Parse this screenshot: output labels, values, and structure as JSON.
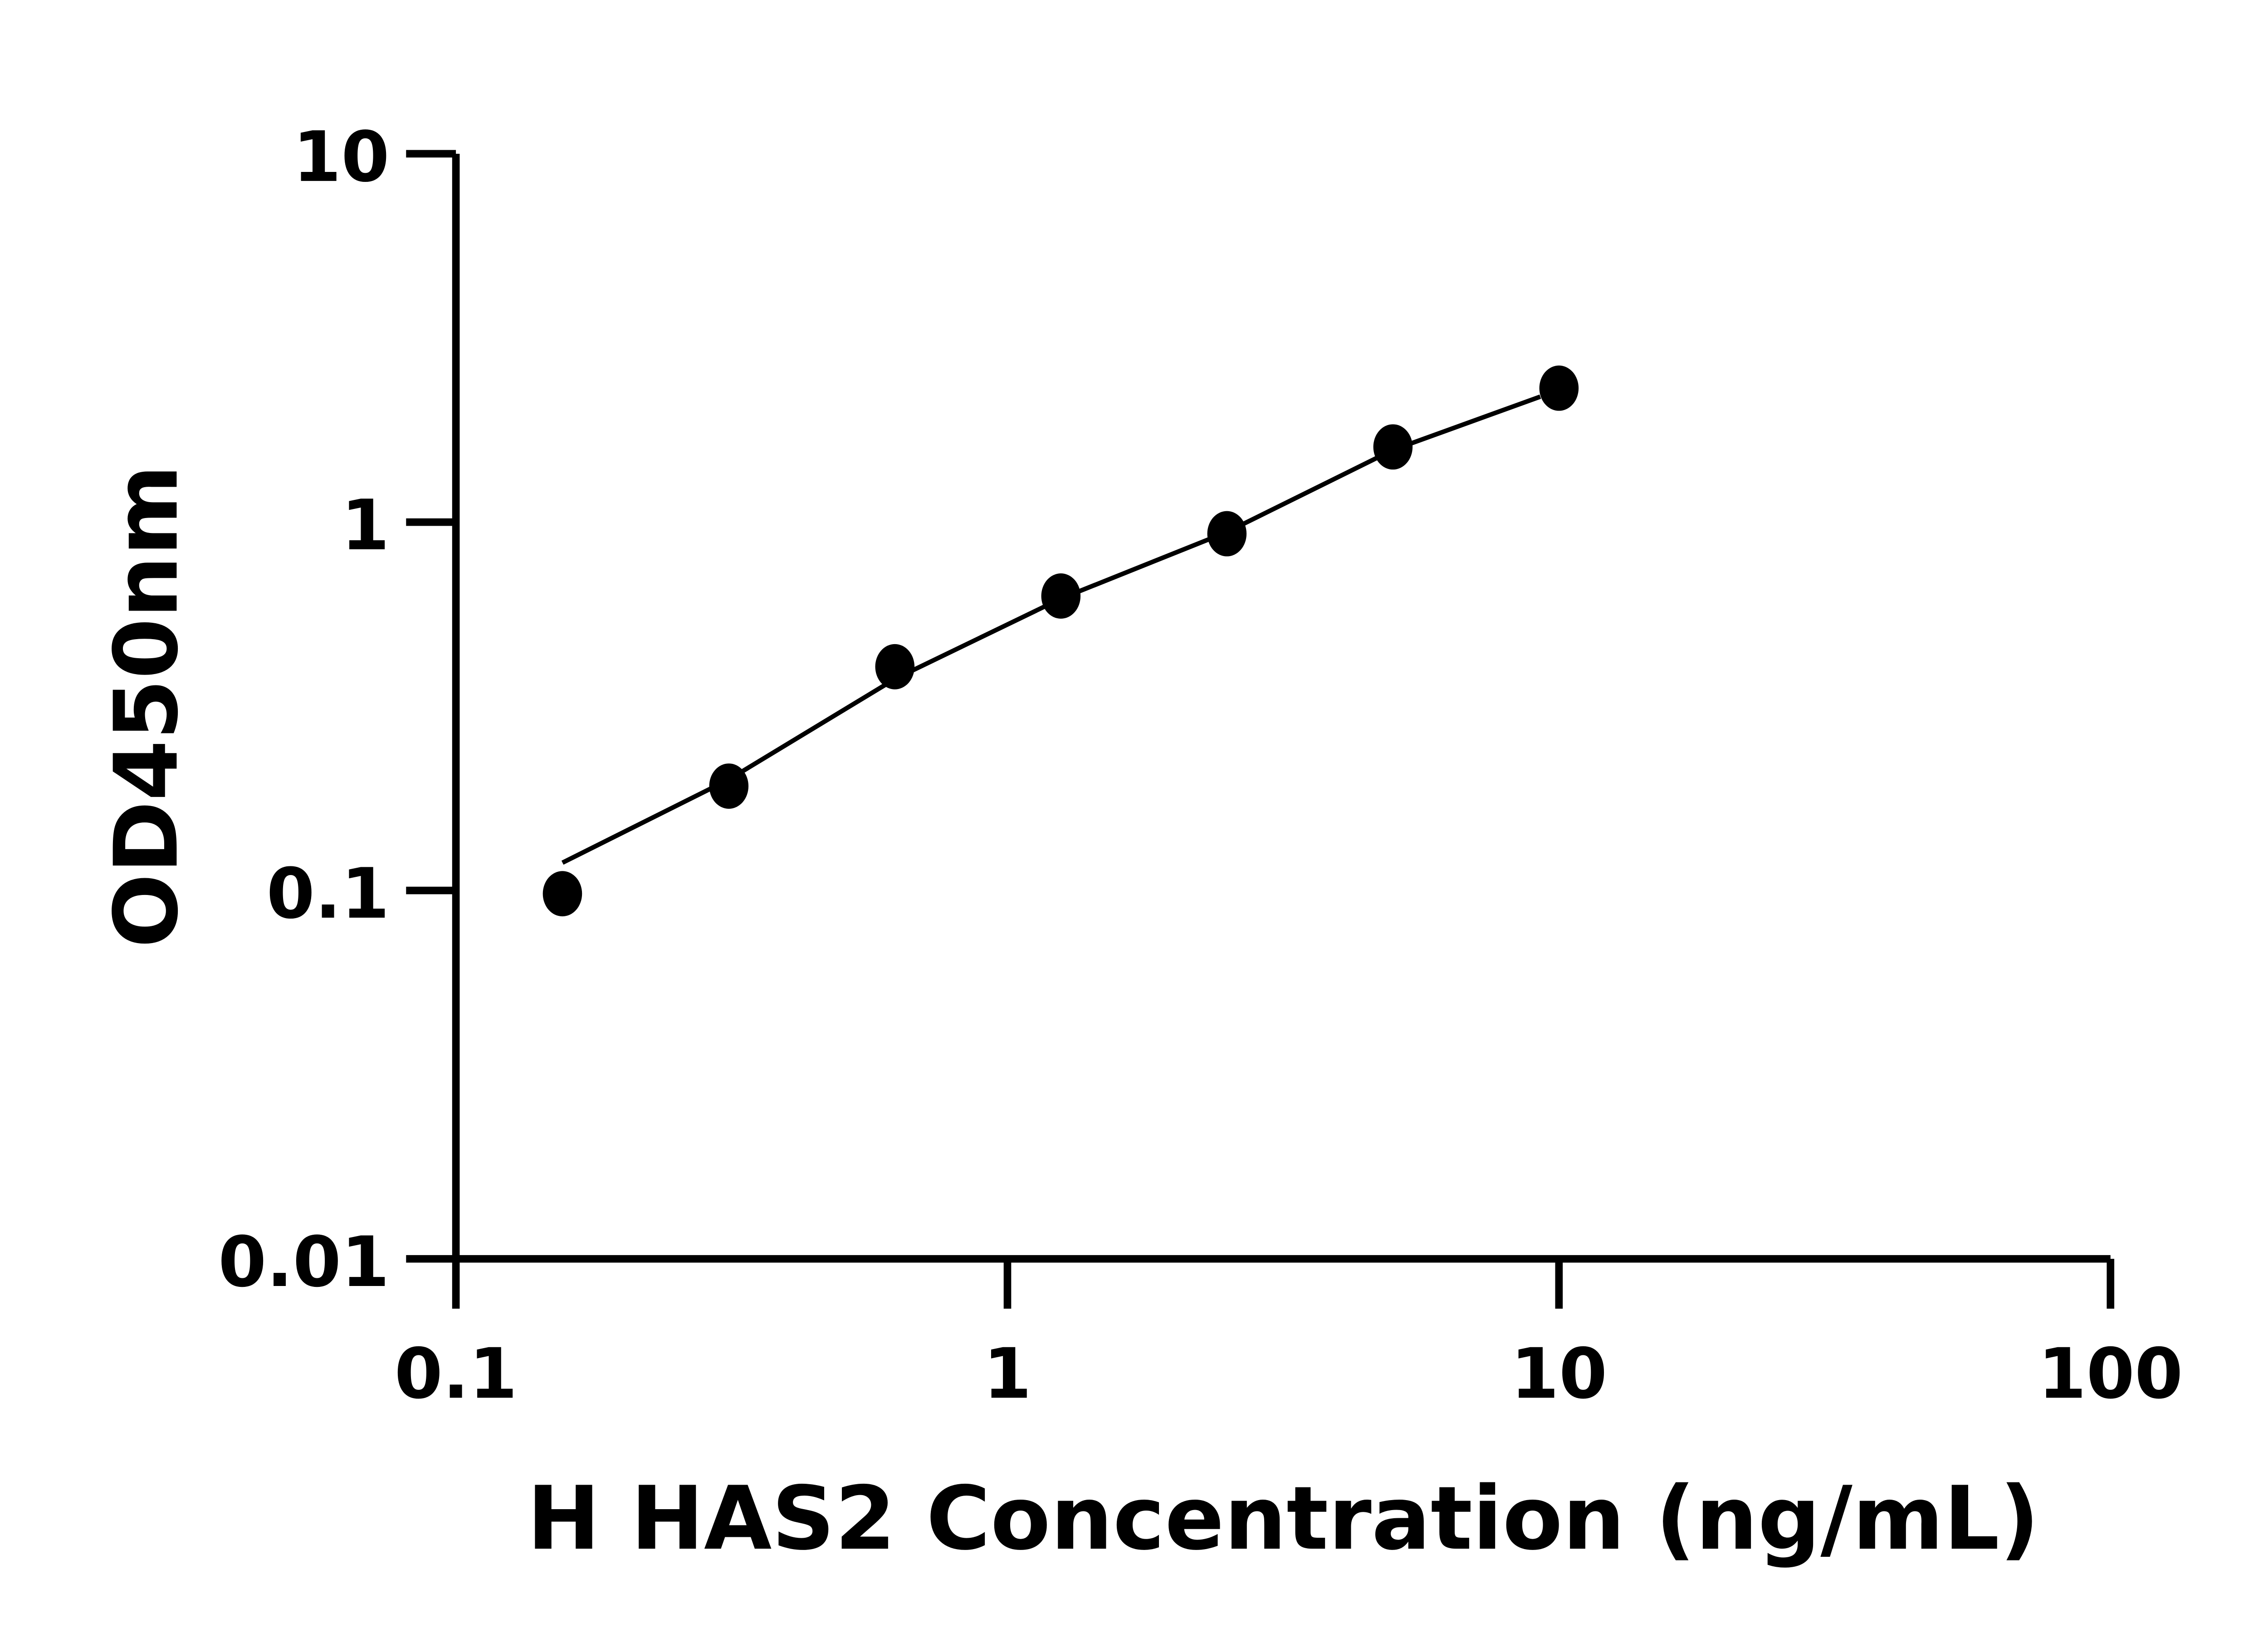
{
  "chart_data": {
    "type": "scatter",
    "title": "",
    "xlabel": "H HAS2 Concentration (ng/mL)",
    "ylabel": "OD450nm",
    "xscale": "log",
    "yscale": "log",
    "xlim": [
      0.1,
      100
    ],
    "ylim": [
      0.01,
      10
    ],
    "xticks": [
      "0.1",
      "1",
      "10",
      "100"
    ],
    "yticks": [
      "0.01",
      "0.1",
      "1",
      "10"
    ],
    "grid": false,
    "color": "#000000",
    "points": {
      "x": [
        0.156,
        0.3125,
        0.625,
        1.25,
        2.5,
        5,
        10
      ],
      "y": [
        0.098,
        0.192,
        0.405,
        0.63,
        0.93,
        1.6,
        2.31
      ]
    },
    "fit_curve": {
      "x": [
        0.156,
        0.3125,
        0.625,
        1.25,
        2.5,
        5,
        9.25
      ],
      "y": [
        0.119,
        0.2,
        0.375,
        0.62,
        0.94,
        1.57,
        2.19
      ]
    }
  }
}
